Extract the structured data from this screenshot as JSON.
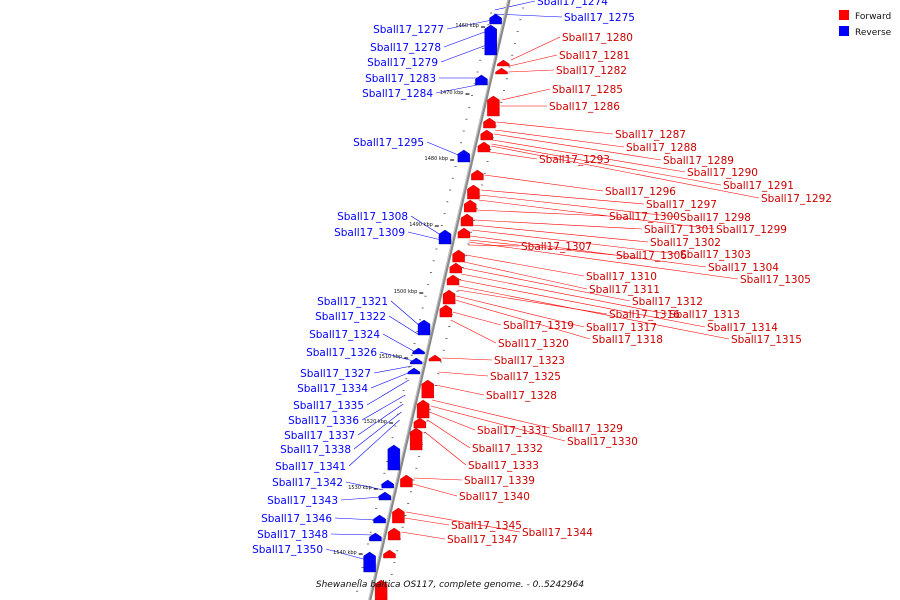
{
  "legend": [
    {
      "label": "Forward",
      "color": "#ff0000"
    },
    {
      "label": "Reverse",
      "color": "#0000ff"
    }
  ],
  "caption": "Shewanella baltica OS117, complete genome. - 0..5242964",
  "ticks": [
    "1460 kbp",
    "1470 kbp",
    "1480 kbp",
    "1490 kbp",
    "1500 kbp",
    "1510 kbp",
    "1520 kbp",
    "1530 kbp",
    "1540 kbp"
  ],
  "reverse_labels": [
    "Sball17_1274",
    "Sball17_1275",
    "Sball17_1277",
    "Sball17_1278",
    "Sball17_1279",
    "Sball17_1283",
    "Sball17_1284",
    "Sball17_1295",
    "Sball17_1308",
    "Sball17_1309",
    "Sball17_1321",
    "Sball17_1322",
    "Sball17_1324",
    "Sball17_1326",
    "Sball17_1327",
    "Sball17_1334",
    "Sball17_1335",
    "Sball17_1336",
    "Sball17_1337",
    "Sball17_1338",
    "Sball17_1341",
    "Sball17_1342",
    "Sball17_1343",
    "Sball17_1346",
    "Sball17_1348",
    "Sball17_1350"
  ],
  "forward_labels": [
    "Sball17_1280",
    "Sball17_1281",
    "Sball17_1282",
    "Sball17_1285",
    "Sball17_1286",
    "Sball17_1287",
    "Sball17_1288",
    "Sball17_1289",
    "Sball17_1290",
    "Sball17_1291",
    "Sball17_1292",
    "Sball17_1293",
    "Sball17_1296",
    "Sball17_1297",
    "Sball17_1298",
    "Sball17_1299",
    "Sball17_1300",
    "Sball17_1301",
    "Sball17_1302",
    "Sball17_1303",
    "Sball17_1304",
    "Sball17_1305",
    "Sball17_1306",
    "Sball17_1307",
    "Sball17_1310",
    "Sball17_1311",
    "Sball17_1312",
    "Sball17_1313",
    "Sball17_1314",
    "Sball17_1315",
    "Sball17_1316",
    "Sball17_1317",
    "Sball17_1318",
    "Sball17_1319",
    "Sball17_1320",
    "Sball17_1323",
    "Sball17_1325",
    "Sball17_1328",
    "Sball17_1329",
    "Sball17_1330",
    "Sball17_1331",
    "Sball17_1332",
    "Sball17_1333",
    "Sball17_1339",
    "Sball17_1340",
    "Sball17_1344",
    "Sball17_1345",
    "Sball17_1347"
  ]
}
